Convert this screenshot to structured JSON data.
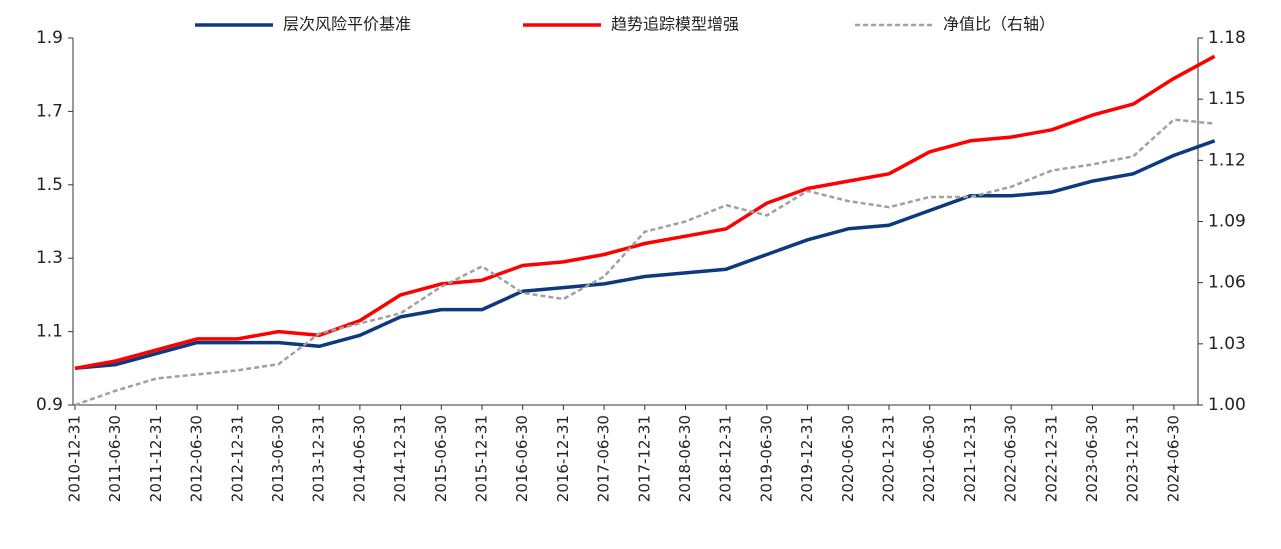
{
  "chart_data": {
    "type": "line",
    "categories": [
      "2010-12-31",
      "2011-06-30",
      "2011-12-31",
      "2012-06-30",
      "2012-12-31",
      "2013-06-30",
      "2013-12-31",
      "2014-06-30",
      "2014-12-31",
      "2015-06-30",
      "2015-12-31",
      "2016-06-30",
      "2016-12-31",
      "2017-06-30",
      "2017-12-31",
      "2018-06-30",
      "2018-12-31",
      "2019-06-30",
      "2019-12-31",
      "2020-06-30",
      "2020-12-31",
      "2021-06-30",
      "2021-12-31",
      "2022-06-30",
      "2022-12-31",
      "2023-06-30",
      "2023-12-31",
      "2024-06-30",
      null
    ],
    "series": [
      {
        "name": "层次风险平价基准",
        "color": "#0d3a7e",
        "values": [
          1.0,
          1.01,
          1.04,
          1.07,
          1.07,
          1.07,
          1.06,
          1.09,
          1.14,
          1.16,
          1.16,
          1.21,
          1.22,
          1.23,
          1.25,
          1.26,
          1.27,
          1.31,
          1.35,
          1.38,
          1.39,
          1.43,
          1.47,
          1.47,
          1.48,
          1.51,
          1.53,
          1.58,
          1.62
        ]
      },
      {
        "name": "趋势追踪模型增强",
        "color": "#ff0000",
        "values": [
          1.0,
          1.02,
          1.05,
          1.08,
          1.08,
          1.1,
          1.09,
          1.13,
          1.2,
          1.23,
          1.24,
          1.28,
          1.29,
          1.31,
          1.34,
          1.36,
          1.38,
          1.45,
          1.49,
          1.51,
          1.53,
          1.59,
          1.62,
          1.63,
          1.65,
          1.69,
          1.72,
          1.79,
          1.85
        ]
      },
      {
        "name": "净值比（右轴）",
        "color": "#a0a0a0",
        "axis": "y2",
        "dashed": true,
        "values": [
          1.0,
          1.007,
          1.013,
          1.015,
          1.017,
          1.02,
          1.035,
          1.04,
          1.045,
          1.058,
          1.068,
          1.055,
          1.052,
          1.063,
          1.085,
          1.09,
          1.098,
          1.093,
          1.105,
          1.1,
          1.097,
          1.102,
          1.102,
          1.107,
          1.115,
          1.118,
          1.122,
          1.14,
          1.138
        ]
      }
    ],
    "ylim": [
      0.9,
      1.9
    ],
    "yticks": [
      0.9,
      1.1,
      1.3,
      1.5,
      1.7,
      1.9
    ],
    "y2lim": [
      1.0,
      1.18
    ],
    "y2ticks": [
      {
        "value": 1.0,
        "label": "1.00"
      },
      1.03,
      1.06,
      1.09,
      1.12,
      1.15,
      1.18
    ],
    "legend": "top"
  }
}
